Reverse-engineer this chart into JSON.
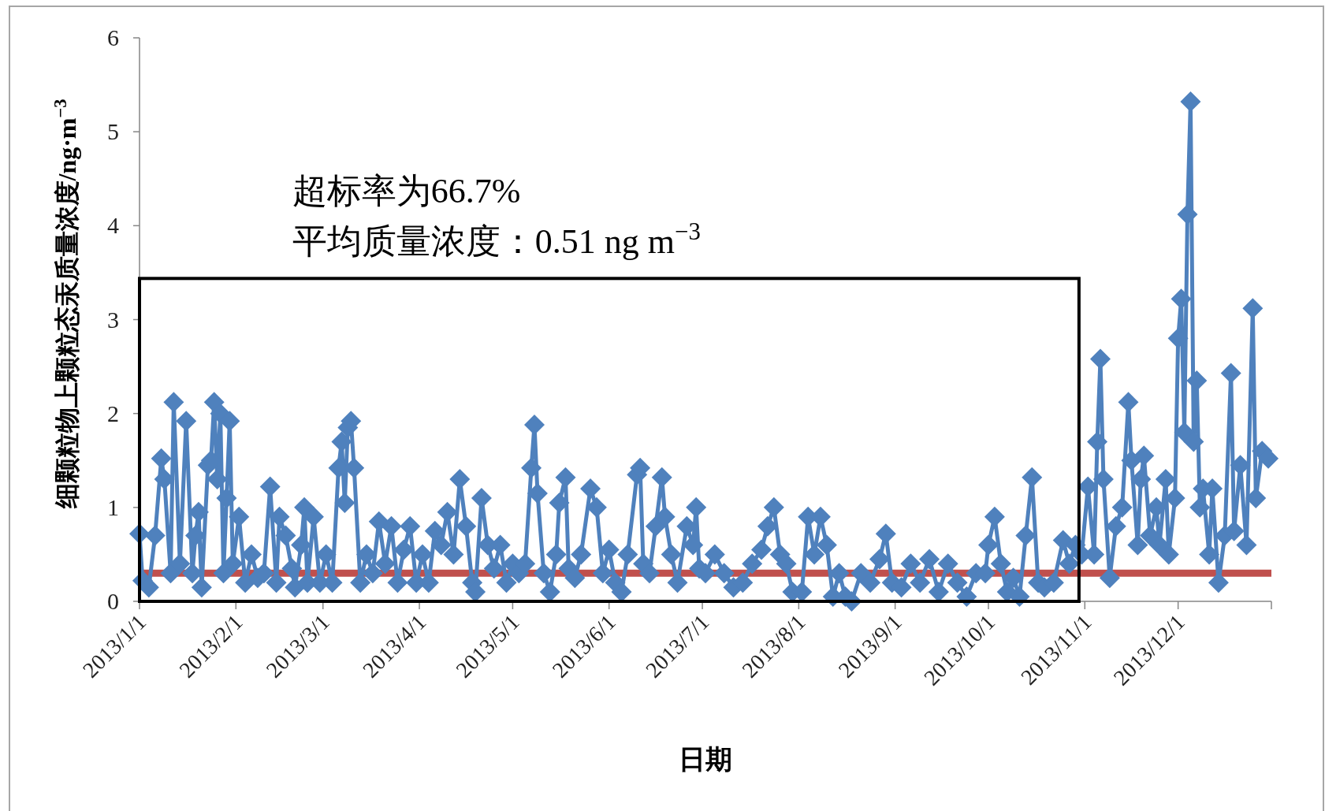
{
  "chart_data": {
    "type": "line",
    "xlabel": "日期",
    "ylabel": "细颗粒物上颗粒态汞质量浓度/ng·m$^{−3}$",
    "annotations": [
      "超标率为66.7%",
      "平均质量浓度：0.51 ng m$^{−3}$"
    ],
    "xlim": [
      "2013-01-01",
      "2013-12-31"
    ],
    "xticks": [
      {
        "value": "2013-01-01",
        "label": "2013/1/1"
      },
      {
        "value": "2013-02-01",
        "label": "2013/2/1"
      },
      {
        "value": "2013-03-01",
        "label": "2013/3/1"
      },
      {
        "value": "2013-04-01",
        "label": "2013/4/1"
      },
      {
        "value": "2013-05-01",
        "label": "2013/5/1"
      },
      {
        "value": "2013-06-01",
        "label": "2013/6/1"
      },
      {
        "value": "2013-07-01",
        "label": "2013/7/1"
      },
      {
        "value": "2013-08-01",
        "label": "2013/8/1"
      },
      {
        "value": "2013-09-01",
        "label": "2013/9/1"
      },
      {
        "value": "2013-10-01",
        "label": "2013/10/1"
      },
      {
        "value": "2013-11-01",
        "label": "2013/11/1"
      },
      {
        "value": "2013-12-01",
        "label": "2013/12/1"
      },
      {
        "value": "2013-12-31",
        "label": null
      }
    ],
    "ylim": [
      0,
      6
    ],
    "yticks": [
      0,
      1,
      2,
      3,
      4,
      5,
      6
    ],
    "grid": false,
    "marker": "diamond",
    "line_style": "solid",
    "ref_lines": [
      {
        "axis": "y",
        "value": 0.3,
        "label": null,
        "color": "#c0504d"
      }
    ],
    "series": [
      {
        "color": "#4f81bd",
        "x": [
          "2013-01-01",
          "2013-01-02",
          "2013-01-04",
          "2013-01-06",
          "2013-01-08",
          "2013-01-09",
          "2013-01-11",
          "2013-01-12",
          "2013-01-14",
          "2013-01-16",
          "2013-01-18",
          "2013-01-19",
          "2013-01-20",
          "2013-01-21",
          "2013-01-23",
          "2013-01-24",
          "2013-01-25",
          "2013-01-26",
          "2013-01-27",
          "2013-01-28",
          "2013-01-29",
          "2013-01-30",
          "2013-01-31",
          "2013-02-02",
          "2013-02-04",
          "2013-02-06",
          "2013-02-08",
          "2013-02-10",
          "2013-02-12",
          "2013-02-14",
          "2013-02-15",
          "2013-02-17",
          "2013-02-19",
          "2013-02-20",
          "2013-02-22",
          "2013-02-23",
          "2013-02-24",
          "2013-02-26",
          "2013-02-28",
          "2013-03-02",
          "2013-03-04",
          "2013-03-06",
          "2013-03-07",
          "2013-03-08",
          "2013-03-09",
          "2013-03-10",
          "2013-03-11",
          "2013-03-13",
          "2013-03-15",
          "2013-03-17",
          "2013-03-19",
          "2013-03-21",
          "2013-03-23",
          "2013-03-25",
          "2013-03-27",
          "2013-03-29",
          "2013-03-31",
          "2013-04-02",
          "2013-04-04",
          "2013-04-06",
          "2013-04-08",
          "2013-04-10",
          "2013-04-12",
          "2013-04-14",
          "2013-04-16",
          "2013-04-18",
          "2013-04-19",
          "2013-04-21",
          "2013-04-23",
          "2013-04-25",
          "2013-04-27",
          "2013-04-29",
          "2013-05-01",
          "2013-05-03",
          "2013-05-05",
          "2013-05-07",
          "2013-05-08",
          "2013-05-09",
          "2013-05-11",
          "2013-05-13",
          "2013-05-15",
          "2013-05-16",
          "2013-05-18",
          "2013-05-19",
          "2013-05-21",
          "2013-05-23",
          "2013-05-26",
          "2013-05-28",
          "2013-05-30",
          "2013-06-01",
          "2013-06-03",
          "2013-06-05",
          "2013-06-07",
          "2013-06-10",
          "2013-06-11",
          "2013-06-12",
          "2013-06-14",
          "2013-06-16",
          "2013-06-18",
          "2013-06-19",
          "2013-06-21",
          "2013-06-23",
          "2013-06-26",
          "2013-06-28",
          "2013-06-29",
          "2013-06-30",
          "2013-07-02",
          "2013-07-05",
          "2013-07-08",
          "2013-07-11",
          "2013-07-14",
          "2013-07-17",
          "2013-07-20",
          "2013-07-22",
          "2013-07-24",
          "2013-07-26",
          "2013-07-28",
          "2013-07-30",
          "2013-08-02",
          "2013-08-04",
          "2013-08-06",
          "2013-08-08",
          "2013-08-10",
          "2013-08-12",
          "2013-08-14",
          "2013-08-16",
          "2013-08-18",
          "2013-08-21",
          "2013-08-24",
          "2013-08-27",
          "2013-08-29",
          "2013-08-31",
          "2013-09-03",
          "2013-09-06",
          "2013-09-09",
          "2013-09-12",
          "2013-09-15",
          "2013-09-18",
          "2013-09-21",
          "2013-09-24",
          "2013-09-27",
          "2013-09-30",
          "2013-10-01",
          "2013-10-03",
          "2013-10-05",
          "2013-10-07",
          "2013-10-09",
          "2013-10-11",
          "2013-10-13",
          "2013-10-15",
          "2013-10-17",
          "2013-10-19",
          "2013-10-22",
          "2013-10-25",
          "2013-10-27",
          "2013-10-29",
          "2013-10-31",
          "2013-11-02",
          "2013-11-04",
          "2013-11-05",
          "2013-11-06",
          "2013-11-07",
          "2013-11-09",
          "2013-11-11",
          "2013-11-13",
          "2013-11-15",
          "2013-11-16",
          "2013-11-18",
          "2013-11-19",
          "2013-11-20",
          "2013-11-22",
          "2013-11-24",
          "2013-11-25",
          "2013-11-27",
          "2013-11-28",
          "2013-11-30",
          "2013-12-01",
          "2013-12-02",
          "2013-12-03",
          "2013-12-04",
          "2013-12-05",
          "2013-12-06",
          "2013-12-07",
          "2013-12-08",
          "2013-12-09",
          "2013-12-11",
          "2013-12-12",
          "2013-12-14",
          "2013-12-16",
          "2013-12-18",
          "2013-12-19",
          "2013-12-21",
          "2013-12-23",
          "2013-12-25",
          "2013-12-26",
          "2013-12-28",
          "2013-12-30"
        ],
        "values": [
          0.72,
          0.22,
          0.15,
          0.7,
          1.52,
          1.3,
          0.3,
          2.12,
          0.4,
          1.92,
          0.3,
          0.7,
          0.95,
          0.15,
          1.45,
          1.5,
          2.12,
          1.3,
          2.0,
          0.3,
          1.1,
          1.92,
          0.4,
          0.9,
          0.2,
          0.5,
          0.25,
          0.3,
          1.22,
          0.2,
          0.9,
          0.7,
          0.35,
          0.15,
          0.6,
          1.0,
          0.2,
          0.9,
          0.2,
          0.5,
          0.2,
          1.42,
          1.7,
          1.05,
          1.85,
          1.92,
          1.42,
          0.2,
          0.5,
          0.3,
          0.85,
          0.4,
          0.8,
          0.2,
          0.55,
          0.8,
          0.2,
          0.5,
          0.2,
          0.75,
          0.6,
          0.95,
          0.5,
          1.3,
          0.8,
          0.2,
          0.1,
          1.1,
          0.6,
          0.35,
          0.6,
          0.2,
          0.4,
          0.3,
          0.4,
          1.42,
          1.88,
          1.15,
          0.3,
          0.1,
          0.5,
          1.05,
          1.32,
          0.35,
          0.25,
          0.5,
          1.2,
          1.0,
          0.3,
          0.55,
          0.2,
          0.1,
          0.5,
          1.35,
          1.42,
          0.4,
          0.3,
          0.8,
          1.32,
          0.9,
          0.5,
          0.2,
          0.8,
          0.6,
          1.0,
          0.35,
          0.3,
          0.5,
          0.3,
          0.15,
          0.2,
          0.4,
          0.55,
          0.8,
          1.0,
          0.5,
          0.4,
          0.1,
          0.1,
          0.9,
          0.5,
          0.9,
          0.6,
          0.05,
          0.3,
          0.05,
          0.0,
          0.3,
          0.2,
          0.45,
          0.72,
          0.2,
          0.15,
          0.4,
          0.2,
          0.45,
          0.1,
          0.4,
          0.2,
          0.05,
          0.3,
          0.3,
          0.6,
          0.9,
          0.4,
          0.1,
          0.25,
          0.05,
          0.7,
          1.32,
          0.2,
          0.15,
          0.2,
          0.65,
          0.4,
          0.6,
          0.5,
          1.22,
          0.5,
          1.7,
          2.58,
          1.3,
          0.25,
          0.8,
          1.0,
          2.12,
          1.5,
          0.6,
          1.3,
          1.55,
          0.7,
          1.0,
          0.6,
          1.3,
          0.5,
          1.1,
          2.8,
          3.22,
          1.8,
          4.12,
          5.32,
          1.7,
          2.35,
          1.0,
          1.2,
          0.5,
          1.2,
          0.2,
          0.7,
          2.43,
          0.75,
          1.45,
          0.6,
          3.12,
          1.1,
          1.6,
          1.52
        ]
      }
    ]
  }
}
